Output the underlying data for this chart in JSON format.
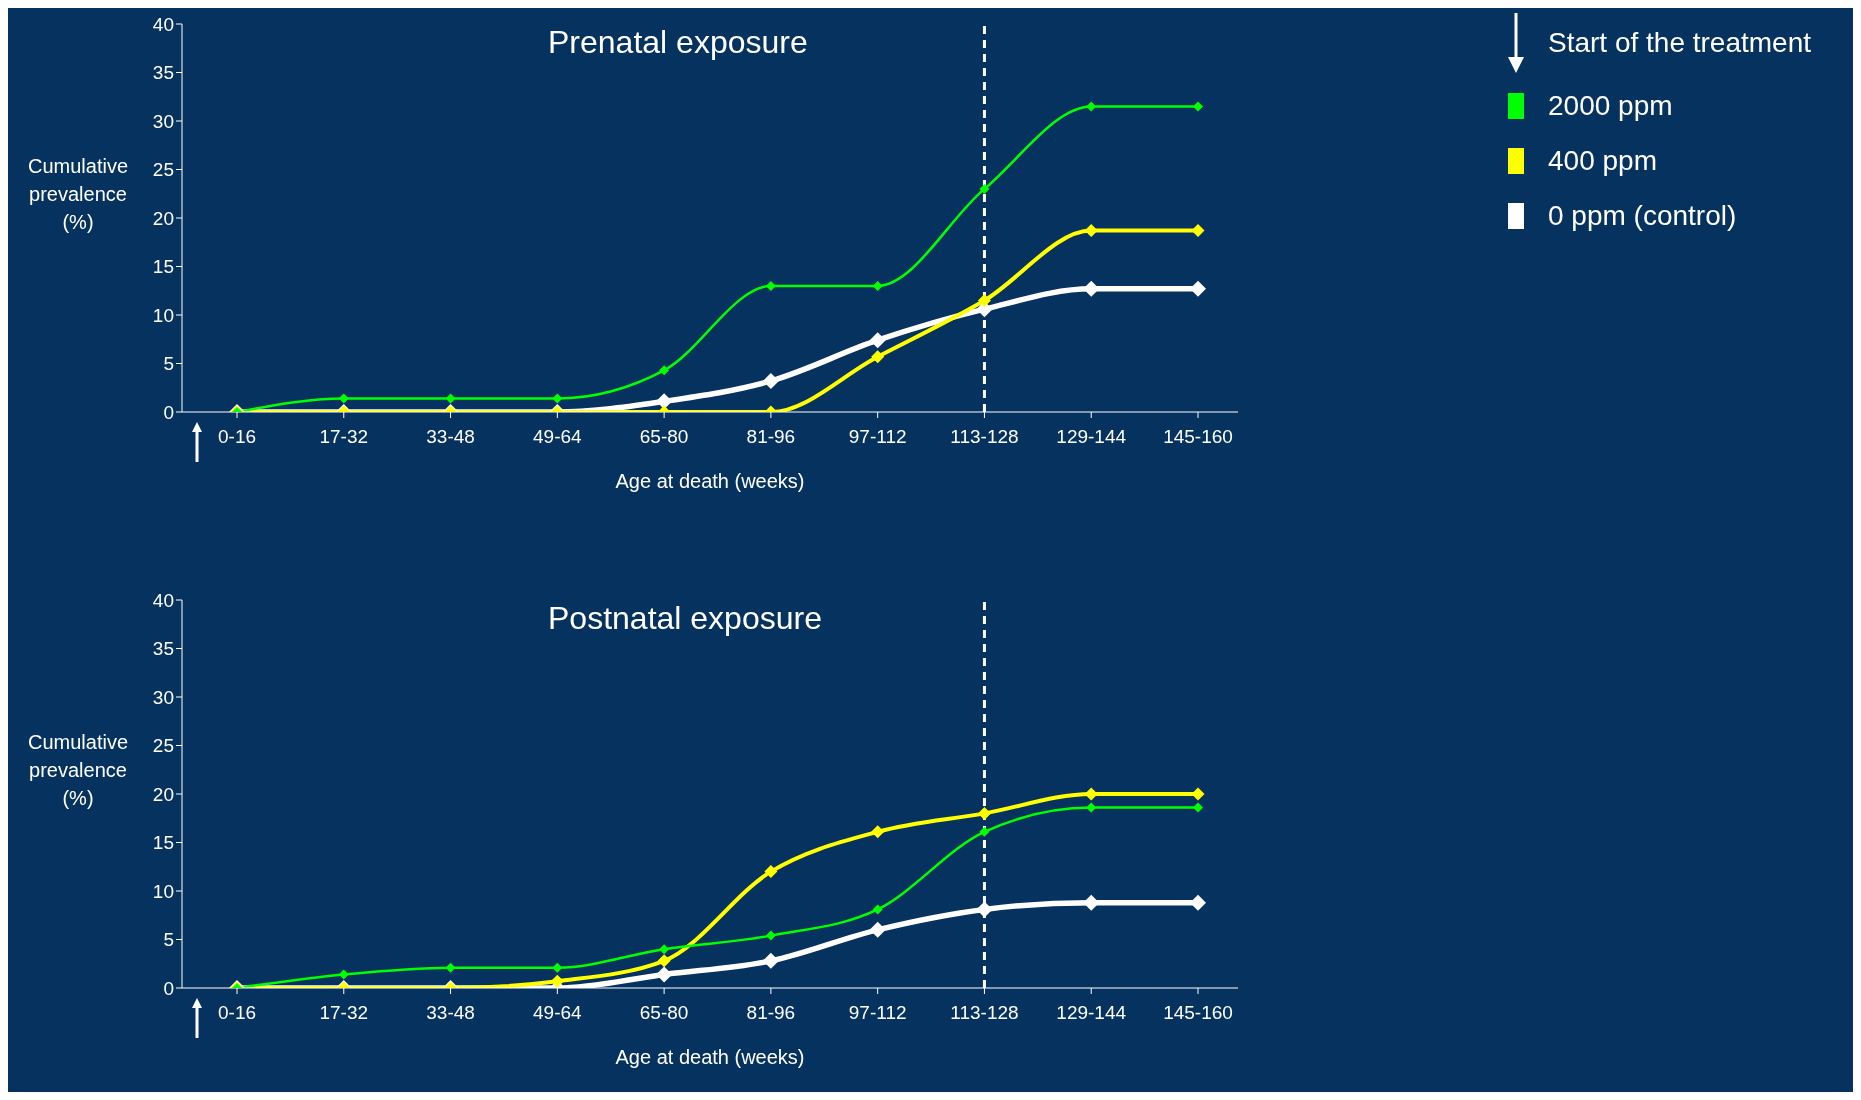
{
  "chart_data": [
    {
      "type": "line",
      "title": "Prenatal exposure",
      "xlabel": "Age at death (weeks)",
      "ylabel": "Cumulative prevalence (%)",
      "categories": [
        "0-16",
        "17-32",
        "33-48",
        "49-64",
        "65-80",
        "81-96",
        "97-112",
        "113-128",
        "129-144",
        "145-160"
      ],
      "ylim": [
        0,
        40
      ],
      "yticks": [
        0,
        5,
        10,
        15,
        20,
        25,
        30,
        35,
        40
      ],
      "grid": false,
      "marker": "diamond",
      "line_style": "solid",
      "legend": "top right",
      "annotations": [
        "Start of the treatment"
      ],
      "ref_lines": [
        {
          "axis": "x",
          "value": "113-128",
          "color": "#ffffff",
          "line_style": "dashed"
        }
      ],
      "series": [
        {
          "name": "2000 ppm",
          "color": "#00ff00",
          "values": [
            0,
            1.4,
            1.4,
            1.4,
            4.3,
            13,
            13,
            23,
            31.5,
            31.5
          ]
        },
        {
          "name": "400 ppm",
          "color": "#ffff00",
          "values": [
            0,
            0,
            0,
            0,
            0,
            0,
            5.7,
            11.5,
            18.7,
            18.7
          ]
        },
        {
          "name": "0 ppm (control)",
          "color": "#ffffff",
          "values": [
            0,
            0,
            0,
            0,
            1.1,
            3.2,
            7.4,
            10.6,
            12.7,
            12.7
          ]
        }
      ]
    },
    {
      "type": "line",
      "title": "Postnatal exposure",
      "xlabel": "Age at death (weeks)",
      "ylabel": "Cumulative prevalence (%)",
      "categories": [
        "0-16",
        "17-32",
        "33-48",
        "49-64",
        "65-80",
        "81-96",
        "97-112",
        "113-128",
        "129-144",
        "145-160"
      ],
      "ylim": [
        0,
        40
      ],
      "yticks": [
        0,
        5,
        10,
        15,
        20,
        25,
        30,
        35,
        40
      ],
      "grid": false,
      "marker": "diamond",
      "line_style": "solid",
      "ref_lines": [
        {
          "axis": "x",
          "value": "113-128",
          "color": "#ffffff",
          "line_style": "dashed"
        }
      ],
      "series": [
        {
          "color": "#00ff00",
          "values": [
            0,
            1.4,
            2.1,
            2.1,
            4.0,
            5.4,
            8.1,
            16.1,
            18.6,
            18.6
          ]
        },
        {
          "color": "#ffff00",
          "values": [
            0,
            0,
            0,
            0.7,
            2.8,
            12,
            16.1,
            18,
            20,
            20
          ]
        },
        {
          "color": "#ffffff",
          "values": [
            0,
            0,
            0,
            0,
            1.4,
            2.8,
            6.0,
            8.1,
            8.8,
            8.8
          ]
        }
      ]
    }
  ]
}
